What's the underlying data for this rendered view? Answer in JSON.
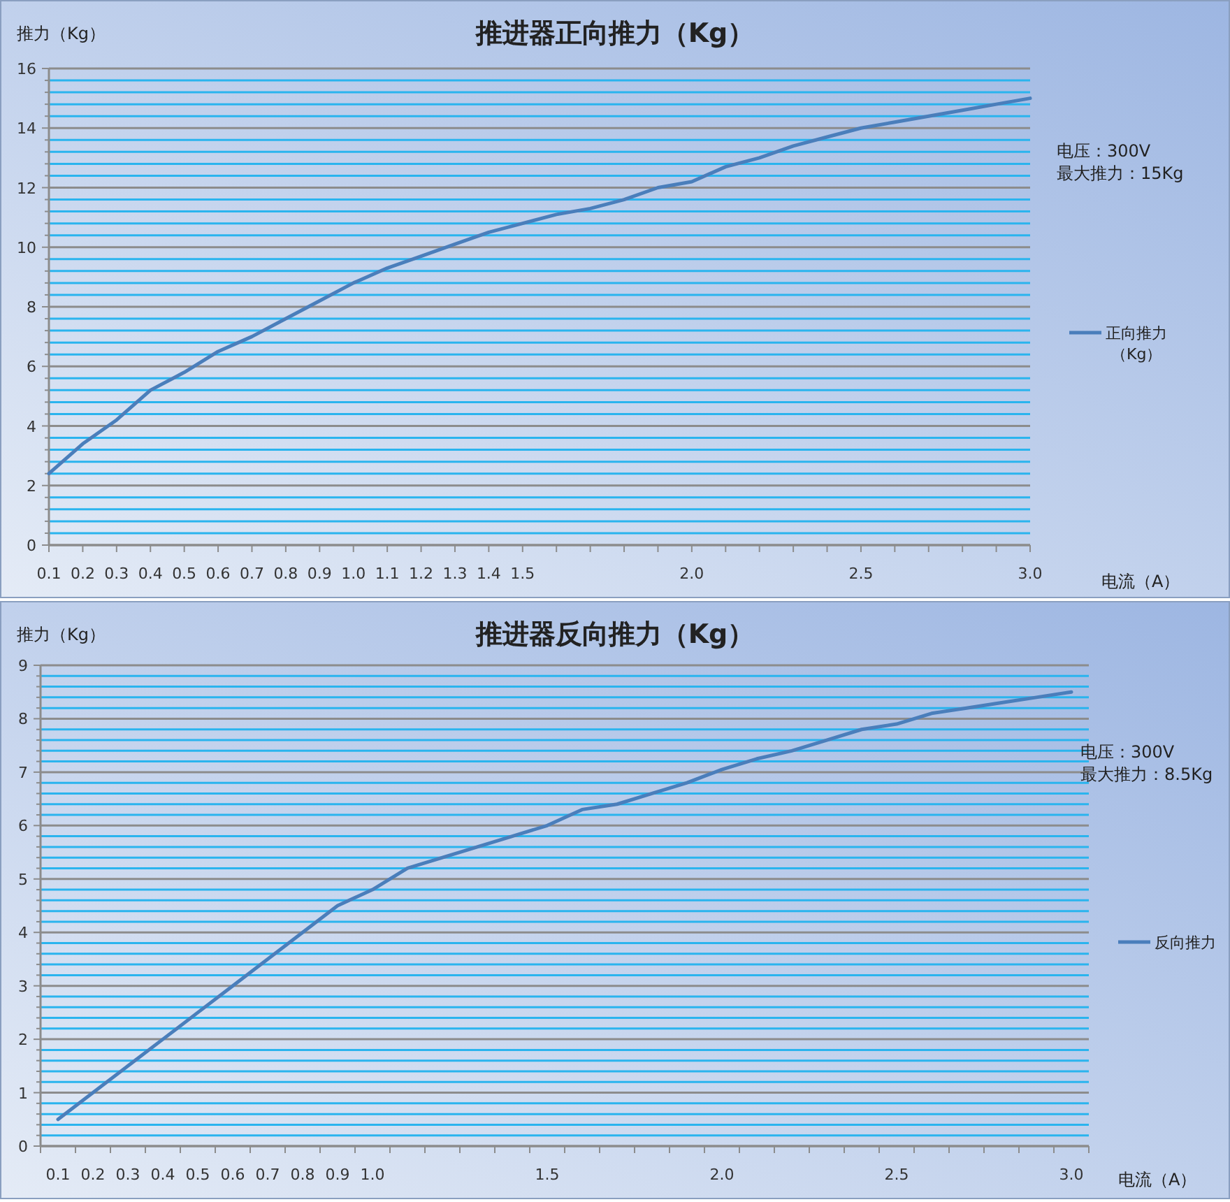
{
  "chart_data": [
    {
      "type": "line",
      "title": "推进器正向推力（Kg）",
      "xlabel": "电流（A）",
      "ylabel": "推力（Kg）",
      "x": [
        0.1,
        0.2,
        0.3,
        0.4,
        0.5,
        0.6,
        0.7,
        0.8,
        0.9,
        1.0,
        1.1,
        1.2,
        1.3,
        1.4,
        1.5,
        1.6,
        1.7,
        1.8,
        1.9,
        2.0,
        2.1,
        2.2,
        2.3,
        2.4,
        2.5,
        2.6,
        2.7,
        2.8,
        2.9,
        3.0
      ],
      "series": [
        {
          "name": "正向推力（Kg）",
          "color": "#4a7ebb",
          "values": [
            2.4,
            3.4,
            4.2,
            5.2,
            5.8,
            6.5,
            7.0,
            7.6,
            8.2,
            8.8,
            9.3,
            9.7,
            10.1,
            10.5,
            10.8,
            11.1,
            11.3,
            11.6,
            12.0,
            12.2,
            12.7,
            13.0,
            13.4,
            13.7,
            14.0,
            14.2,
            14.4,
            14.6,
            14.8,
            15.0
          ]
        }
      ],
      "xlim": [
        0.1,
        3.0
      ],
      "xticks": [
        0.1,
        0.2,
        0.3,
        0.4,
        0.5,
        0.6,
        0.7,
        0.8,
        0.9,
        {
          "value": 1.0,
          "label": "1.0"
        },
        1.1,
        1.2,
        1.3,
        1.4,
        1.5,
        {
          "value": 1.6,
          "label": null
        },
        {
          "value": 1.7,
          "label": null
        },
        {
          "value": 1.8,
          "label": null
        },
        {
          "value": 1.9,
          "label": null
        },
        {
          "value": 2.0,
          "label": "2.0"
        },
        {
          "value": 2.1,
          "label": null
        },
        {
          "value": 2.2,
          "label": null
        },
        {
          "value": 2.3,
          "label": null
        },
        {
          "value": 2.4,
          "label": null
        },
        2.5,
        {
          "value": 2.6,
          "label": null
        },
        {
          "value": 2.7,
          "label": null
        },
        {
          "value": 2.8,
          "label": null
        },
        {
          "value": 2.9,
          "label": null
        },
        {
          "value": 3.0,
          "label": "3.0"
        }
      ],
      "ylim": [
        0,
        16
      ],
      "yticks": [
        0,
        {
          "value": 0.4,
          "label": null
        },
        {
          "value": 0.8,
          "label": null
        },
        {
          "value": 1.2,
          "label": null
        },
        {
          "value": 1.6,
          "label": null
        },
        2,
        {
          "value": 2.4,
          "label": null
        },
        {
          "value": 2.8,
          "label": null
        },
        {
          "value": 3.2,
          "label": null
        },
        {
          "value": 3.6,
          "label": null
        },
        4,
        {
          "value": 4.4,
          "label": null
        },
        {
          "value": 4.8,
          "label": null
        },
        {
          "value": 5.2,
          "label": null
        },
        {
          "value": 5.6,
          "label": null
        },
        6,
        {
          "value": 6.4,
          "label": null
        },
        {
          "value": 6.8,
          "label": null
        },
        {
          "value": 7.2,
          "label": null
        },
        {
          "value": 7.6,
          "label": null
        },
        8,
        {
          "value": 8.4,
          "label": null
        },
        {
          "value": 8.8,
          "label": null
        },
        {
          "value": 9.2,
          "label": null
        },
        {
          "value": 9.6,
          "label": null
        },
        10,
        {
          "value": 10.4,
          "label": null
        },
        {
          "value": 10.8,
          "label": null
        },
        {
          "value": 11.2,
          "label": null
        },
        {
          "value": 11.6,
          "label": null
        },
        12,
        {
          "value": 12.4,
          "label": null
        },
        {
          "value": 12.8,
          "label": null
        },
        {
          "value": 13.2,
          "label": null
        },
        {
          "value": 13.6,
          "label": null
        },
        14,
        {
          "value": 14.4,
          "label": null
        },
        {
          "value": 14.8,
          "label": null
        },
        {
          "value": 15.2,
          "label": null
        },
        {
          "value": 15.6,
          "label": null
        },
        16
      ],
      "grid": "y",
      "legend": "right",
      "annotations": [
        "电压：300V",
        "最大推力：15Kg"
      ]
    },
    {
      "type": "line",
      "title": "推进器反向推力（Kg）",
      "xlabel": "电流（A）",
      "ylabel": "推力（Kg）",
      "categories": [
        "0.1",
        "0.2",
        "0.3",
        "0.4",
        "0.5",
        "0.6",
        "0.7",
        "0.8",
        "0.9",
        "1.0",
        null,
        null,
        null,
        null,
        "1.5",
        null,
        null,
        null,
        null,
        "2.0",
        null,
        null,
        null,
        null,
        "2.5",
        null,
        null,
        null,
        null,
        "3.0"
      ],
      "series": [
        {
          "name": "反向推力",
          "color": "#4a7ebb",
          "values": [
            0.5,
            1.0,
            1.5,
            2.0,
            2.5,
            3.0,
            3.5,
            4.0,
            4.5,
            4.8,
            5.2,
            5.4,
            5.6,
            5.8,
            6.0,
            6.3,
            6.4,
            6.6,
            6.8,
            7.05,
            7.25,
            7.4,
            7.6,
            7.8,
            7.9,
            8.1,
            8.2,
            8.3,
            8.4,
            8.5
          ]
        }
      ],
      "ylim": [
        0,
        9
      ],
      "yticks": [
        0,
        {
          "value": 0.2,
          "label": null
        },
        {
          "value": 0.4,
          "label": null
        },
        {
          "value": 0.6,
          "label": null
        },
        {
          "value": 0.8,
          "label": null
        },
        1,
        {
          "value": 1.2,
          "label": null
        },
        {
          "value": 1.4,
          "label": null
        },
        {
          "value": 1.6,
          "label": null
        },
        {
          "value": 1.8,
          "label": null
        },
        2,
        {
          "value": 2.2,
          "label": null
        },
        {
          "value": 2.4,
          "label": null
        },
        {
          "value": 2.6,
          "label": null
        },
        {
          "value": 2.8,
          "label": null
        },
        3,
        {
          "value": 3.2,
          "label": null
        },
        {
          "value": 3.4,
          "label": null
        },
        {
          "value": 3.6,
          "label": null
        },
        {
          "value": 3.8,
          "label": null
        },
        4,
        {
          "value": 4.2,
          "label": null
        },
        {
          "value": 4.4,
          "label": null
        },
        {
          "value": 4.6,
          "label": null
        },
        {
          "value": 4.8,
          "label": null
        },
        5,
        {
          "value": 5.2,
          "label": null
        },
        {
          "value": 5.4,
          "label": null
        },
        {
          "value": 5.6,
          "label": null
        },
        {
          "value": 5.8,
          "label": null
        },
        6,
        {
          "value": 6.2,
          "label": null
        },
        {
          "value": 6.4,
          "label": null
        },
        {
          "value": 6.6,
          "label": null
        },
        {
          "value": 6.8,
          "label": null
        },
        7,
        {
          "value": 7.2,
          "label": null
        },
        {
          "value": 7.4,
          "label": null
        },
        {
          "value": 7.6,
          "label": null
        },
        {
          "value": 7.8,
          "label": null
        },
        8,
        {
          "value": 8.2,
          "label": null
        },
        {
          "value": 8.4,
          "label": null
        },
        {
          "value": 8.6,
          "label": null
        },
        {
          "value": 8.8,
          "label": null
        },
        9
      ],
      "grid": "y",
      "legend": "right",
      "annotations": [
        "电压：300V",
        "最大推力：8.5Kg"
      ]
    }
  ]
}
